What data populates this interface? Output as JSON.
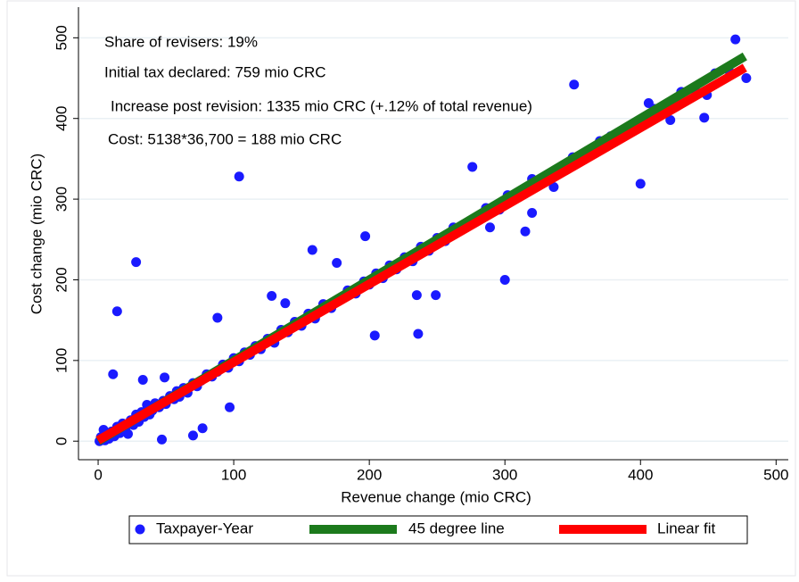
{
  "chart_data": {
    "type": "scatter",
    "xlabel": "Revenue change (mio CRC)",
    "ylabel": "Cost change (mio CRC)",
    "annotations": [
      "Share of revisers: 19%",
      "Initial tax declared: 759 mio CRC",
      "Increase post revision: 1335 mio CRC (+.12% of total revenue)",
      "Cost: 5138*36,700 = 188 mio CRC"
    ],
    "xlim": [
      -14.5,
      509
    ],
    "ylim": [
      -23,
      538
    ],
    "xticks": [
      0,
      100,
      200,
      300,
      400,
      500
    ],
    "yticks": [
      0,
      100,
      200,
      300,
      400,
      500
    ],
    "grid": true,
    "legend": "bottom",
    "series": [
      {
        "name": "Taxpayer-Year",
        "type": "scatter",
        "color": "#1a1aff",
        "x": [
          1,
          2,
          3,
          4,
          5,
          6,
          8,
          10,
          12,
          14,
          16,
          18,
          20,
          22,
          24,
          26,
          28,
          30,
          32,
          34,
          36,
          38,
          40,
          42,
          45,
          48,
          50,
          53,
          56,
          58,
          60,
          63,
          66,
          70,
          73,
          76,
          80,
          84,
          88,
          92,
          96,
          100,
          104,
          108,
          112,
          116,
          120,
          125,
          130,
          135,
          140,
          145,
          150,
          155,
          160,
          166,
          172,
          178,
          184,
          190,
          196,
          200,
          205,
          210,
          215,
          220,
          226,
          232,
          238,
          244,
          250,
          256,
          262,
          270,
          278,
          286,
          294,
          302,
          310,
          320,
          330,
          340,
          350,
          360,
          370,
          380,
          390,
          400,
          410,
          420,
          430,
          440,
          455,
          465,
          470,
          351,
          104,
          28,
          14,
          11,
          158,
          197,
          176,
          276,
          300,
          204,
          236,
          235,
          249,
          88,
          128,
          138,
          97,
          70,
          77,
          47,
          33,
          49,
          400,
          315,
          320,
          336,
          289,
          296,
          378,
          406,
          447,
          422,
          449,
          478
        ],
        "values": [
          0,
          5,
          2,
          14,
          1,
          8,
          3,
          12,
          6,
          18,
          10,
          22,
          15,
          9,
          26,
          20,
          33,
          24,
          36,
          30,
          45,
          33,
          38,
          47,
          42,
          50,
          46,
          56,
          52,
          62,
          55,
          66,
          60,
          72,
          68,
          75,
          83,
          80,
          86,
          95,
          91,
          103,
          99,
          110,
          107,
          118,
          114,
          127,
          122,
          138,
          135,
          148,
          143,
          158,
          152,
          170,
          165,
          176,
          187,
          183,
          198,
          194,
          208,
          202,
          218,
          213,
          228,
          223,
          241,
          236,
          252,
          248,
          265,
          268,
          276,
          289,
          290,
          305,
          304,
          325,
          328,
          335,
          352,
          356,
          372,
          374,
          388,
          395,
          412,
          411,
          433,
          436,
          456,
          460,
          498,
          442,
          328,
          222,
          161,
          83,
          237,
          254,
          221,
          340,
          200,
          131,
          133,
          181,
          181,
          153,
          180,
          171,
          42,
          7,
          16,
          2,
          76,
          79,
          319,
          260,
          283,
          315,
          265,
          287,
          378,
          419,
          401,
          398,
          429,
          450
        ]
      },
      {
        "name": "45 degree line",
        "type": "line",
        "color": "#1c7a1c",
        "x": [
          0,
          477
        ],
        "values": [
          0,
          477
        ]
      },
      {
        "name": "Linear fit",
        "type": "line",
        "color": "#ff0000",
        "x": [
          0,
          477
        ],
        "values": [
          1,
          463
        ]
      }
    ]
  }
}
